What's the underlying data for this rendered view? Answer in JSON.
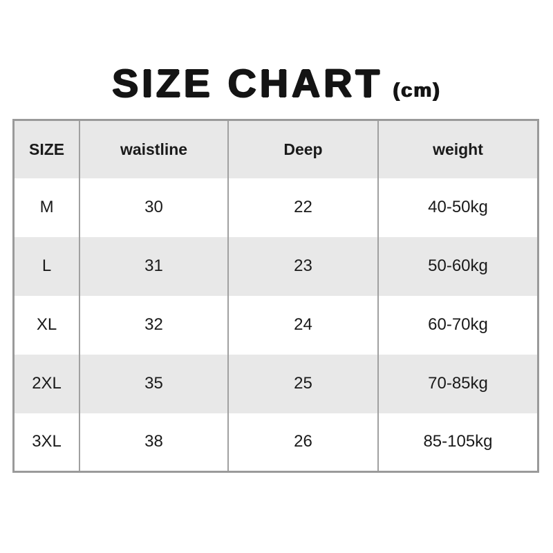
{
  "title": {
    "main": "SIZE CHART",
    "unit": "(cm)"
  },
  "colors": {
    "background": "#ffffff",
    "row_alt_bg": "#e8e8e8",
    "outer_border": "#9a9a9a",
    "column_divider": "#a0a0a0",
    "text": "#1a1a1a"
  },
  "chart_data": {
    "type": "table",
    "title": "SIZE CHART (cm)",
    "columns": [
      "SIZE",
      "waistline",
      "Deep",
      "weight"
    ],
    "rows": [
      [
        "M",
        "30",
        "22",
        "40-50kg"
      ],
      [
        "L",
        "31",
        "23",
        "50-60kg"
      ],
      [
        "XL",
        "32",
        "24",
        "60-70kg"
      ],
      [
        "2XL",
        "35",
        "25",
        "70-85kg"
      ],
      [
        "3XL",
        "38",
        "26",
        "85-105kg"
      ]
    ]
  }
}
